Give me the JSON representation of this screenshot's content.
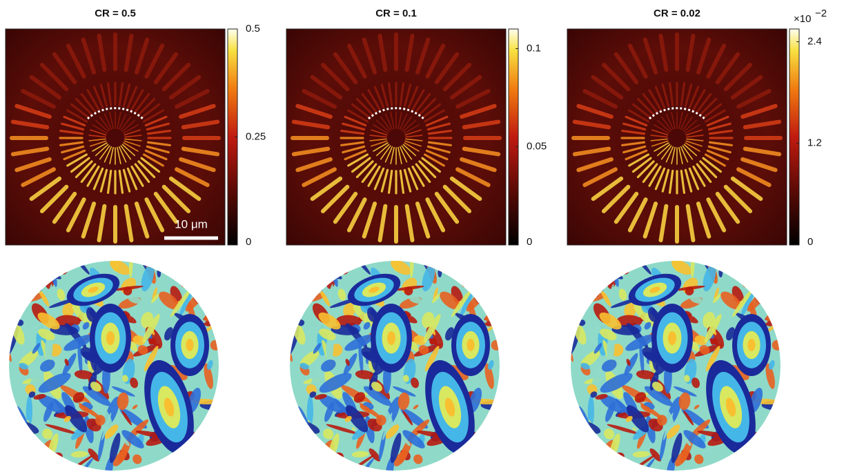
{
  "panels": [
    {
      "title": "CR = 0.5",
      "colorbar": {
        "lim": [
          0,
          0.5
        ],
        "ticks": [
          0,
          0.25,
          0.5
        ]
      }
    },
    {
      "title": "CR = 0.1",
      "colorbar": {
        "lim": [
          0,
          0.11
        ],
        "ticks": [
          0,
          0.05,
          0.1
        ]
      }
    },
    {
      "title": "CR = 0.02",
      "colorbar": {
        "multiplier": {
          "base": "×10",
          "exponent": "−2"
        },
        "lim": [
          0,
          2.55
        ],
        "ticks": [
          0,
          1.2,
          2.4
        ]
      }
    }
  ],
  "scale_bar": "10 μm"
}
